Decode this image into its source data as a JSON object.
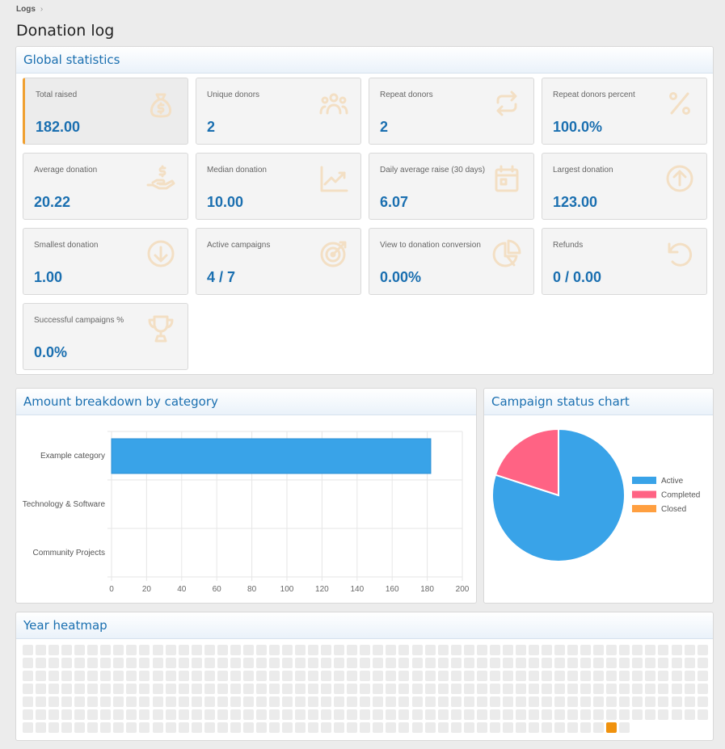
{
  "breadcrumb": {
    "item": "Logs",
    "sep": "›"
  },
  "page_title": "Donation log",
  "global": {
    "title": "Global statistics",
    "stats": [
      {
        "label": "Total raised",
        "value": "182.00",
        "icon": "money-bag-icon"
      },
      {
        "label": "Unique donors",
        "value": "2",
        "icon": "users-icon"
      },
      {
        "label": "Repeat donors",
        "value": "2",
        "icon": "repeat-icon"
      },
      {
        "label": "Repeat donors percent",
        "value": "100.0%",
        "icon": "percent-icon"
      },
      {
        "label": "Average donation",
        "value": "20.22",
        "icon": "hand-coin-icon"
      },
      {
        "label": "Median donation",
        "value": "10.00",
        "icon": "chart-trend-icon"
      },
      {
        "label": "Daily average raise (30 days)",
        "value": "6.07",
        "icon": "calendar-icon"
      },
      {
        "label": "Largest donation",
        "value": "123.00",
        "icon": "arrow-up-circle-icon"
      },
      {
        "label": "Smallest donation",
        "value": "1.00",
        "icon": "arrow-down-circle-icon"
      },
      {
        "label": "Active campaigns",
        "value": "4 / 7",
        "icon": "target-icon"
      },
      {
        "label": "View to donation conversion",
        "value": "0.00%",
        "icon": "pie-chart-icon"
      },
      {
        "label": "Refunds",
        "value": "0 / 0.00",
        "icon": "undo-icon"
      },
      {
        "label": "Successful campaigns %",
        "value": "0.0%",
        "icon": "trophy-icon"
      }
    ]
  },
  "breakdown": {
    "title": "Amount breakdown by category"
  },
  "status": {
    "title": "Campaign status chart"
  },
  "heatmap": {
    "title": "Year heatmap",
    "empty_color": "#ebebeb",
    "active_color": "#f0920e",
    "active_cells": [
      {
        "week": 23,
        "day": 6
      }
    ]
  },
  "chart_data": [
    {
      "type": "bar",
      "orientation": "horizontal",
      "categories": [
        "Example category",
        "Technology & Software",
        "Community Projects"
      ],
      "values": [
        182,
        0,
        0
      ],
      "xlim": [
        0,
        200
      ],
      "ticks": [
        0,
        20,
        40,
        60,
        80,
        100,
        120,
        140,
        160,
        180,
        200
      ],
      "color": "#39a3e8",
      "grid": true
    },
    {
      "type": "pie",
      "labels": [
        "Active",
        "Completed",
        "Closed"
      ],
      "values": [
        4,
        1,
        0
      ],
      "colors": [
        "#39a3e8",
        "#ff6384",
        "#ff9f40"
      ],
      "legend": "right"
    }
  ]
}
